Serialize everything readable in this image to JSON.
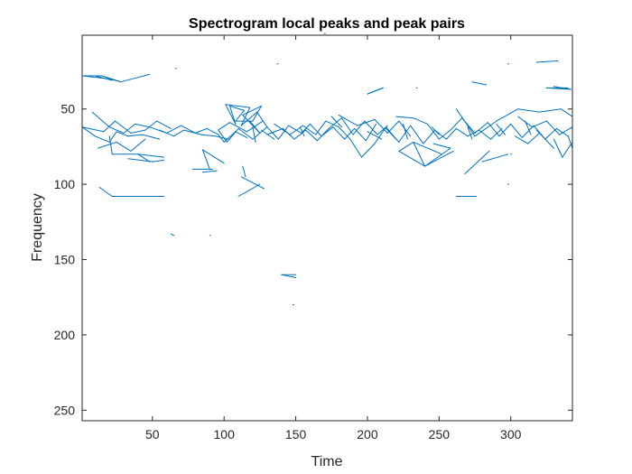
{
  "chart_data": {
    "type": "line",
    "title": "Spectrogram local peaks and peak pairs",
    "xlabel": "Time",
    "ylabel": "Frequency",
    "xlim": [
      1,
      343
    ],
    "ylim": [
      1,
      257
    ],
    "y_reversed": true,
    "xticks": [
      50,
      100,
      150,
      200,
      250,
      300
    ],
    "yticks": [
      50,
      100,
      150,
      200,
      250
    ],
    "grid": false,
    "box": true,
    "series_color": "#0072BD",
    "segments": [
      [
        1,
        28,
        15,
        28
      ],
      [
        1,
        28,
        20,
        30
      ],
      [
        15,
        28,
        28,
        32
      ],
      [
        20,
        30,
        28,
        32
      ],
      [
        10,
        28,
        22,
        31
      ],
      [
        28,
        32,
        48,
        27
      ],
      [
        66,
        23,
        66,
        23
      ],
      [
        137,
        20,
        137,
        20
      ],
      [
        318,
        19,
        333,
        18
      ],
      [
        298,
        20,
        298,
        20
      ],
      [
        170,
        0,
        170,
        0
      ],
      [
        200,
        40,
        208,
        37
      ],
      [
        200,
        40,
        211,
        36
      ],
      [
        208,
        37,
        211,
        36
      ],
      [
        234,
        36,
        234,
        36
      ],
      [
        273,
        32,
        283,
        34
      ],
      [
        325,
        36,
        340,
        36
      ],
      [
        325,
        36,
        342,
        37
      ],
      [
        330,
        35,
        342,
        37
      ],
      [
        1,
        62,
        10,
        68
      ],
      [
        10,
        68,
        20,
        72
      ],
      [
        20,
        72,
        25,
        65
      ],
      [
        25,
        65,
        33,
        68
      ],
      [
        33,
        68,
        43,
        67
      ],
      [
        43,
        67,
        55,
        70
      ],
      [
        1,
        62,
        16,
        65
      ],
      [
        16,
        65,
        24,
        58
      ],
      [
        24,
        58,
        35,
        66
      ],
      [
        35,
        66,
        45,
        64
      ],
      [
        45,
        64,
        53,
        58
      ],
      [
        53,
        58,
        63,
        63
      ],
      [
        8,
        52,
        20,
        62
      ],
      [
        20,
        62,
        30,
        66
      ],
      [
        30,
        66,
        38,
        60
      ],
      [
        38,
        60,
        48,
        62
      ],
      [
        48,
        62,
        60,
        66
      ],
      [
        60,
        66,
        70,
        61
      ],
      [
        70,
        61,
        80,
        66
      ],
      [
        80,
        66,
        88,
        63
      ],
      [
        88,
        63,
        96,
        67
      ],
      [
        96,
        67,
        100,
        72
      ],
      [
        100,
        72,
        108,
        65
      ],
      [
        108,
        65,
        116,
        69
      ],
      [
        55,
        64,
        65,
        68
      ],
      [
        65,
        68,
        72,
        64
      ],
      [
        72,
        64,
        84,
        67
      ],
      [
        84,
        67,
        94,
        68
      ],
      [
        94,
        68,
        103,
        70
      ],
      [
        20,
        68,
        22,
        80
      ],
      [
        22,
        80,
        40,
        80
      ],
      [
        40,
        80,
        48,
        85
      ],
      [
        40,
        80,
        58,
        82
      ],
      [
        33,
        83,
        50,
        85
      ],
      [
        50,
        85,
        58,
        84
      ],
      [
        12,
        76,
        25,
        72
      ],
      [
        25,
        72,
        35,
        78
      ],
      [
        35,
        78,
        45,
        70
      ],
      [
        13,
        102,
        22,
        108
      ],
      [
        22,
        108,
        40,
        108
      ],
      [
        40,
        108,
        58,
        108
      ],
      [
        65,
        134,
        63,
        133
      ],
      [
        90,
        134,
        90,
        134
      ],
      [
        85,
        77,
        90,
        90
      ],
      [
        78,
        90,
        92,
        90
      ],
      [
        85,
        92,
        95,
        91
      ],
      [
        85,
        77,
        100,
        86
      ],
      [
        101,
        47,
        108,
        60
      ],
      [
        108,
        60,
        104,
        48
      ],
      [
        104,
        48,
        114,
        51
      ],
      [
        114,
        51,
        108,
        58
      ],
      [
        108,
        58,
        120,
        58
      ],
      [
        120,
        58,
        126,
        48
      ],
      [
        126,
        48,
        113,
        54
      ],
      [
        113,
        54,
        125,
        66
      ],
      [
        125,
        66,
        118,
        58
      ],
      [
        101,
        47,
        118,
        49
      ],
      [
        118,
        49,
        112,
        61
      ],
      [
        112,
        61,
        123,
        52
      ],
      [
        123,
        52,
        130,
        62
      ],
      [
        130,
        62,
        120,
        70
      ],
      [
        120,
        70,
        110,
        63
      ],
      [
        110,
        63,
        102,
        72
      ],
      [
        102,
        72,
        96,
        64
      ],
      [
        96,
        64,
        104,
        59
      ],
      [
        104,
        59,
        116,
        65
      ],
      [
        116,
        65,
        127,
        58
      ],
      [
        113,
        88,
        115,
        95
      ],
      [
        110,
        108,
        125,
        100
      ],
      [
        112,
        95,
        128,
        103
      ],
      [
        130,
        62,
        138,
        70
      ],
      [
        138,
        70,
        145,
        61
      ],
      [
        145,
        61,
        154,
        66
      ],
      [
        154,
        66,
        160,
        60
      ],
      [
        160,
        60,
        168,
        68
      ],
      [
        168,
        68,
        176,
        62
      ],
      [
        176,
        62,
        184,
        70
      ],
      [
        184,
        70,
        191,
        63
      ],
      [
        191,
        63,
        199,
        71
      ],
      [
        199,
        71,
        206,
        60
      ],
      [
        130,
        67,
        141,
        63
      ],
      [
        141,
        63,
        149,
        70
      ],
      [
        149,
        70,
        157,
        64
      ],
      [
        157,
        64,
        165,
        71
      ],
      [
        165,
        71,
        173,
        63
      ],
      [
        173,
        63,
        182,
        56
      ],
      [
        182,
        56,
        190,
        67
      ],
      [
        190,
        67,
        198,
        58
      ],
      [
        198,
        58,
        207,
        67
      ],
      [
        207,
        67,
        214,
        61
      ],
      [
        135,
        60,
        146,
        67
      ],
      [
        146,
        67,
        155,
        61
      ],
      [
        155,
        61,
        164,
        67
      ],
      [
        164,
        67,
        171,
        58
      ],
      [
        171,
        58,
        180,
        62
      ],
      [
        180,
        62,
        188,
        70
      ],
      [
        188,
        70,
        196,
        82
      ],
      [
        196,
        82,
        205,
        73
      ],
      [
        205,
        73,
        213,
        62
      ],
      [
        213,
        62,
        220,
        70
      ],
      [
        180,
        54,
        193,
        61
      ],
      [
        193,
        61,
        205,
        57
      ],
      [
        205,
        57,
        214,
        66
      ],
      [
        214,
        66,
        222,
        58
      ],
      [
        222,
        58,
        230,
        68
      ],
      [
        140,
        160,
        150,
        162
      ],
      [
        140,
        160,
        150,
        160
      ],
      [
        148,
        180,
        148,
        180
      ],
      [
        213,
        63,
        222,
        72
      ],
      [
        222,
        72,
        230,
        61
      ],
      [
        230,
        61,
        239,
        73
      ],
      [
        239,
        73,
        247,
        64
      ],
      [
        247,
        64,
        255,
        70
      ],
      [
        255,
        70,
        262,
        63
      ],
      [
        262,
        63,
        270,
        68
      ],
      [
        270,
        68,
        278,
        64
      ],
      [
        278,
        64,
        286,
        70
      ],
      [
        286,
        70,
        294,
        63
      ],
      [
        220,
        55,
        232,
        56
      ],
      [
        232,
        56,
        242,
        60
      ],
      [
        242,
        60,
        250,
        70
      ],
      [
        250,
        70,
        258,
        64
      ],
      [
        258,
        64,
        266,
        56
      ],
      [
        222,
        78,
        232,
        72
      ],
      [
        232,
        72,
        240,
        88
      ],
      [
        240,
        88,
        249,
        82
      ],
      [
        249,
        82,
        258,
        76
      ],
      [
        258,
        76,
        246,
        73
      ],
      [
        222,
        78,
        240,
        88
      ],
      [
        232,
        72,
        252,
        80
      ],
      [
        240,
        88,
        260,
        78
      ],
      [
        266,
        56,
        275,
        66
      ],
      [
        275,
        66,
        284,
        59
      ],
      [
        284,
        59,
        292,
        68
      ],
      [
        292,
        68,
        300,
        60
      ],
      [
        300,
        60,
        308,
        69
      ],
      [
        308,
        69,
        316,
        61
      ],
      [
        316,
        61,
        324,
        70
      ],
      [
        324,
        70,
        332,
        63
      ],
      [
        332,
        63,
        340,
        68
      ],
      [
        340,
        68,
        343,
        76
      ],
      [
        262,
        50,
        275,
        68
      ],
      [
        275,
        68,
        290,
        58
      ],
      [
        290,
        58,
        305,
        50
      ],
      [
        305,
        50,
        320,
        52
      ],
      [
        320,
        52,
        335,
        50
      ],
      [
        335,
        50,
        343,
        55
      ],
      [
        305,
        55,
        315,
        62
      ],
      [
        315,
        62,
        325,
        58
      ],
      [
        325,
        58,
        334,
        67
      ],
      [
        334,
        67,
        343,
        62
      ],
      [
        262,
        108,
        276,
        108
      ],
      [
        268,
        93,
        285,
        78
      ],
      [
        280,
        85,
        298,
        80
      ],
      [
        300,
        80,
        300,
        80
      ],
      [
        298,
        100,
        298,
        100
      ],
      [
        330,
        70,
        336,
        82
      ],
      [
        336,
        82,
        343,
        72
      ],
      [
        318,
        64,
        330,
        76
      ],
      [
        303,
        68,
        312,
        73
      ],
      [
        312,
        73,
        320,
        66
      ],
      [
        120,
        62,
        122,
        72
      ],
      [
        126,
        64,
        135,
        70
      ],
      [
        153,
        62,
        156,
        68
      ],
      [
        175,
        55,
        182,
        62
      ],
      [
        200,
        65,
        210,
        70
      ],
      [
        225,
        60,
        228,
        70
      ],
      [
        245,
        62,
        250,
        67
      ],
      [
        270,
        62,
        273,
        70
      ],
      [
        290,
        60,
        296,
        67
      ],
      [
        310,
        58,
        314,
        67
      ]
    ]
  }
}
